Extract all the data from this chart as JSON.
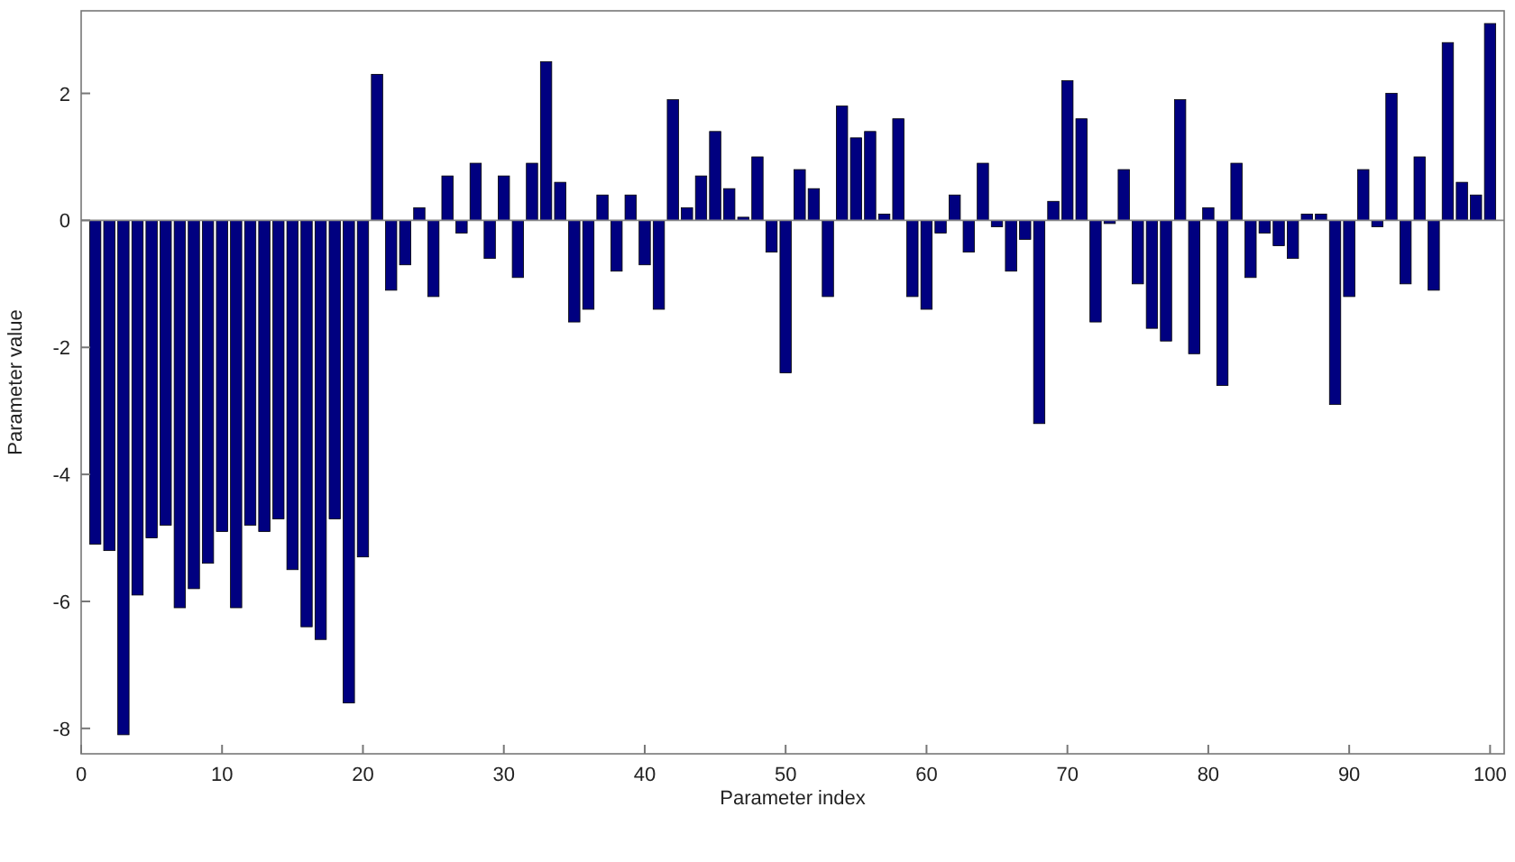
{
  "chart_data": {
    "type": "bar",
    "xlabel": "Parameter index",
    "ylabel": "Parameter value",
    "color": "#000080",
    "x": [
      1,
      2,
      3,
      4,
      5,
      6,
      7,
      8,
      9,
      10,
      11,
      12,
      13,
      14,
      15,
      16,
      17,
      18,
      19,
      20,
      21,
      22,
      23,
      24,
      25,
      26,
      27,
      28,
      29,
      30,
      31,
      32,
      33,
      34,
      35,
      36,
      37,
      38,
      39,
      40,
      41,
      42,
      43,
      44,
      45,
      46,
      47,
      48,
      49,
      50,
      51,
      52,
      53,
      54,
      55,
      56,
      57,
      58,
      59,
      60,
      61,
      62,
      63,
      64,
      65,
      66,
      67,
      68,
      69,
      70,
      71,
      72,
      73,
      74,
      75,
      76,
      77,
      78,
      79,
      80,
      81,
      82,
      83,
      84,
      85,
      86,
      87,
      88,
      89,
      90,
      91,
      92,
      93,
      94,
      95,
      96,
      97,
      98,
      99,
      100
    ],
    "values": [
      -5.1,
      -5.2,
      -8.1,
      -5.9,
      -5.0,
      -4.8,
      -6.1,
      -5.8,
      -5.4,
      -4.9,
      -6.1,
      -4.8,
      -4.9,
      -4.7,
      -5.5,
      -6.4,
      -6.6,
      -4.7,
      -7.6,
      -5.3,
      2.3,
      -1.1,
      -0.7,
      0.2,
      -1.2,
      0.7,
      -0.2,
      0.9,
      -0.6,
      0.7,
      -0.9,
      0.9,
      2.5,
      0.6,
      -1.6,
      -1.4,
      0.4,
      -0.8,
      0.4,
      -0.7,
      -1.4,
      1.9,
      0.2,
      0.7,
      1.4,
      0.5,
      0.05,
      1.0,
      -0.5,
      -2.4,
      0.8,
      0.5,
      -1.2,
      1.8,
      1.3,
      1.4,
      0.1,
      1.6,
      -1.2,
      -1.4,
      -0.2,
      0.4,
      -0.5,
      0.9,
      -0.1,
      -0.8,
      -0.3,
      -3.2,
      0.3,
      2.2,
      1.6,
      -1.6,
      -0.05,
      0.8,
      -1.0,
      -1.7,
      -1.9,
      1.9,
      -2.1,
      0.2,
      -2.6,
      0.9,
      -0.9,
      -0.2,
      -0.4,
      -0.6,
      0.1,
      0.1,
      -2.9,
      -1.2,
      0.8,
      -0.1,
      2.0,
      -1.0,
      1.0,
      -1.1,
      2.8,
      0.6,
      0.4,
      3.1
    ],
    "xlim": [
      0,
      101
    ],
    "xticks": [
      0,
      10,
      20,
      30,
      40,
      50,
      60,
      70,
      80,
      90,
      100
    ],
    "ylim": [
      -8.4,
      3.3
    ],
    "yticks": [
      -8,
      -6,
      -4,
      -2,
      0,
      2
    ]
  }
}
